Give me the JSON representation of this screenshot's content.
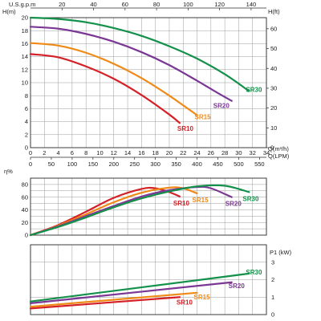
{
  "colors": {
    "grid": "#9a9a9a",
    "frame": "#2a2a2a"
  },
  "chart_data": [
    {
      "id": "head",
      "type": "line",
      "xlabel": "Q(m³/h)",
      "xlabel2": "Q(LPM)",
      "xlabel_top": "U.S.g.p.m",
      "ylabel": "H(m)",
      "ylabel_right": "H(ft)",
      "xlim": [
        0,
        34
      ],
      "ylim": [
        0,
        20
      ],
      "yright_lim": [
        0,
        65.6
      ],
      "x_ticks": [
        "0",
        "2",
        "4",
        "6",
        "8",
        "10",
        "12",
        "14",
        "16",
        "18",
        "20",
        "22",
        "24",
        "26",
        "28",
        "30",
        "32",
        "34"
      ],
      "x2_ticks": [
        "0",
        "50",
        "100",
        "150",
        "200",
        "250",
        "300",
        "350",
        "400",
        "450",
        "500",
        "550"
      ],
      "x_top_ticks": [
        "20",
        "40",
        "60",
        "80",
        "100",
        "120",
        "140"
      ],
      "y_ticks": [
        "0",
        "2",
        "4",
        "6",
        "8",
        "10",
        "12",
        "14",
        "16",
        "18",
        "20"
      ],
      "yright_ticks": [
        "0",
        "10",
        "20",
        "30",
        "40",
        "50",
        "60"
      ],
      "grid": true,
      "series": [
        {
          "name": "SR10",
          "color": "#d42027",
          "x": [
            0,
            4,
            8,
            12,
            16,
            20,
            21.5
          ],
          "y": [
            14.4,
            13.9,
            12.5,
            10.6,
            8.1,
            5.1,
            3.8
          ]
        },
        {
          "name": "SR15",
          "color": "#ef8a17",
          "x": [
            0,
            4,
            8,
            12,
            16,
            20,
            24
          ],
          "y": [
            16.1,
            15.7,
            14.6,
            12.9,
            10.7,
            8.0,
            5.0
          ]
        },
        {
          "name": "SR20",
          "color": "#7b3794",
          "x": [
            0,
            4,
            8,
            12,
            16,
            20,
            24,
            27,
            29
          ],
          "y": [
            18.6,
            18.3,
            17.5,
            16.3,
            14.7,
            12.7,
            10.3,
            8.4,
            7.2
          ]
        },
        {
          "name": "SR30",
          "color": "#13904a",
          "x": [
            0,
            4,
            8,
            12,
            16,
            20,
            24,
            28,
            31.5
          ],
          "y": [
            20.0,
            19.8,
            19.3,
            18.4,
            17.2,
            15.6,
            13.7,
            11.3,
            8.7
          ]
        }
      ]
    },
    {
      "id": "efficiency",
      "type": "line",
      "ylabel": "η%",
      "xlim": [
        0,
        34
      ],
      "ylim": [
        0,
        90
      ],
      "y_ticks": [
        "0",
        "20",
        "40",
        "60",
        "80"
      ],
      "grid": true,
      "series": [
        {
          "name": "SR10",
          "color": "#d42027",
          "x": [
            0,
            4,
            8,
            12,
            16,
            18,
            20,
            21.5
          ],
          "y": [
            0,
            16,
            37,
            59,
            73,
            74,
            68,
            61
          ]
        },
        {
          "name": "SR15",
          "color": "#ef8a17",
          "x": [
            0,
            4,
            8,
            12,
            16,
            20,
            22,
            24
          ],
          "y": [
            0,
            15,
            33,
            52,
            67,
            75,
            74,
            66
          ]
        },
        {
          "name": "SR20",
          "color": "#7b3794",
          "x": [
            0,
            4,
            8,
            12,
            16,
            20,
            24,
            26,
            29
          ],
          "y": [
            0,
            14,
            30,
            46,
            61,
            71,
            76,
            74,
            60
          ]
        },
        {
          "name": "SR30",
          "color": "#13904a",
          "x": [
            0,
            4,
            8,
            12,
            16,
            20,
            24,
            28,
            31.5
          ],
          "y": [
            0,
            13,
            28,
            44,
            58,
            69,
            77,
            78,
            68
          ]
        }
      ]
    },
    {
      "id": "power",
      "type": "line",
      "ylabel_right": "P1 (kW)",
      "xlim": [
        0,
        34
      ],
      "ylim": [
        0,
        4
      ],
      "y_ticks": [
        "0",
        "1",
        "2",
        "3"
      ],
      "grid": true,
      "series": [
        {
          "name": "SR10",
          "color": "#d42027",
          "x": [
            0,
            21.5
          ],
          "y": [
            0.35,
            1.0
          ]
        },
        {
          "name": "SR15",
          "color": "#ef8a17",
          "x": [
            0,
            24
          ],
          "y": [
            0.45,
            1.25
          ]
        },
        {
          "name": "SR20",
          "color": "#7b3794",
          "x": [
            0,
            29
          ],
          "y": [
            0.65,
            1.85
          ]
        },
        {
          "name": "SR30",
          "color": "#13904a",
          "x": [
            0,
            31.5
          ],
          "y": [
            0.75,
            2.35
          ]
        }
      ]
    }
  ]
}
